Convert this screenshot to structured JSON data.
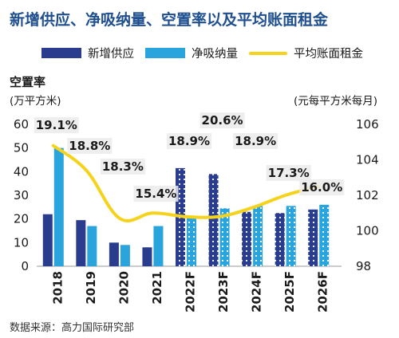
{
  "chart_data": {
    "type": "bar",
    "title": "新增供应、净吸纳量、空置率以及平均账面租金",
    "y_title": "空置率",
    "ylabel": "(万平方米)",
    "y2label": "(元每平方米每月)",
    "categories": [
      "2018",
      "2019",
      "2020",
      "2021",
      "2022F",
      "2023F",
      "2024F",
      "2025F",
      "2026F"
    ],
    "forecast_from_index": 4,
    "series": [
      {
        "name": "新增供应",
        "type": "bar",
        "axis": "left",
        "color": "#2a3c8e",
        "values": [
          22,
          19.5,
          10,
          8,
          41.5,
          39,
          23,
          22.5,
          24
        ]
      },
      {
        "name": "净吸纳量",
        "type": "bar",
        "axis": "left",
        "color": "#29a4dc",
        "values": [
          50,
          17,
          9,
          17,
          21,
          24.5,
          25.5,
          25.5,
          26
        ]
      },
      {
        "name": "平均账面租金",
        "type": "line",
        "axis": "right",
        "color": "#f5d31d",
        "values": [
          104.8,
          103.4,
          100.7,
          101.0,
          100.8,
          100.8,
          101.3,
          102.0,
          102.5
        ]
      }
    ],
    "vacancy_labels": [
      "19.1%",
      "18.8%",
      "18.3%",
      "15.4%",
      "18.9%",
      "20.6%",
      "18.9%",
      "17.3%",
      "16.0%"
    ],
    "ylim": [
      0,
      60
    ],
    "yticks": [
      0,
      10,
      20,
      30,
      40,
      50,
      60
    ],
    "y2lim": [
      98,
      106
    ],
    "y2ticks": [
      98,
      100,
      102,
      104,
      106
    ],
    "source": "数据来源：高力国际研究部"
  }
}
